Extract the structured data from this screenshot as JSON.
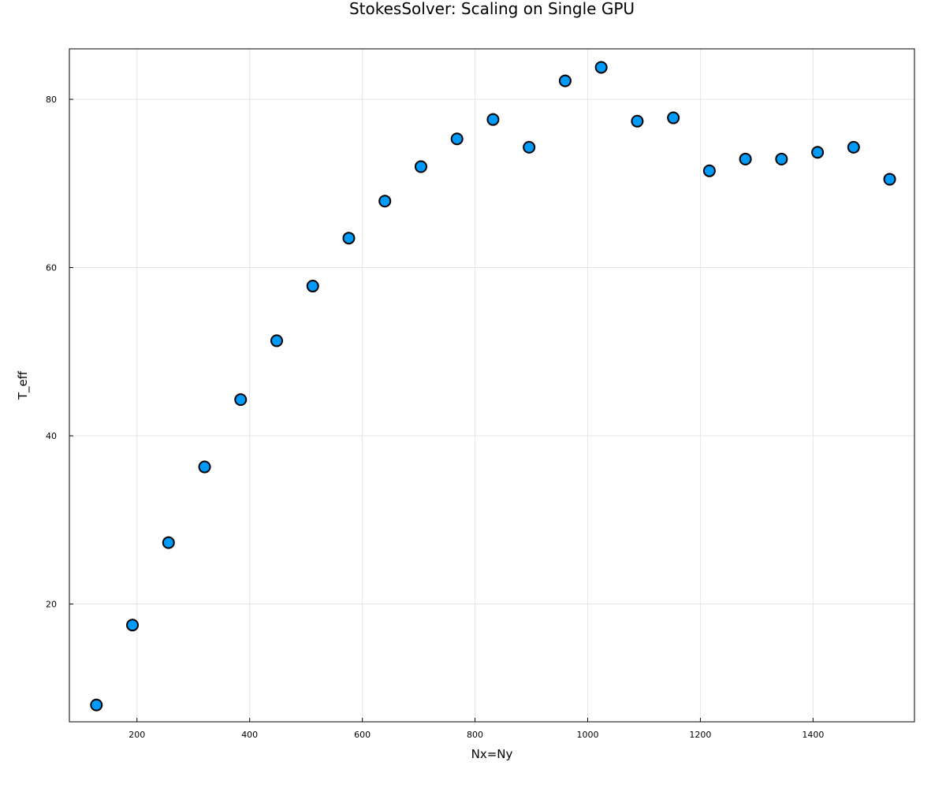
{
  "chart_data": {
    "type": "scatter",
    "title": "StokesSolver: Scaling on Single GPU",
    "xlabel": "Nx=Ny",
    "ylabel": "T_eff",
    "xlim": [
      80,
      1580
    ],
    "ylim": [
      6,
      86
    ],
    "xticks": [
      200,
      400,
      600,
      800,
      1000,
      1200,
      1400
    ],
    "yticks": [
      20,
      40,
      60,
      80
    ],
    "grid": true,
    "legend": "none",
    "marker_color": "#009af9",
    "marker_edge_color": "#000000",
    "points": [
      {
        "x": 128,
        "y": 8.0
      },
      {
        "x": 192,
        "y": 17.5
      },
      {
        "x": 256,
        "y": 27.3
      },
      {
        "x": 320,
        "y": 36.3
      },
      {
        "x": 384,
        "y": 44.3
      },
      {
        "x": 448,
        "y": 51.3
      },
      {
        "x": 512,
        "y": 57.8
      },
      {
        "x": 576,
        "y": 63.5
      },
      {
        "x": 640,
        "y": 67.9
      },
      {
        "x": 704,
        "y": 72.0
      },
      {
        "x": 768,
        "y": 75.3
      },
      {
        "x": 832,
        "y": 77.6
      },
      {
        "x": 896,
        "y": 74.3
      },
      {
        "x": 960,
        "y": 82.2
      },
      {
        "x": 1024,
        "y": 83.8
      },
      {
        "x": 1088,
        "y": 77.4
      },
      {
        "x": 1152,
        "y": 77.8
      },
      {
        "x": 1216,
        "y": 71.5
      },
      {
        "x": 1280,
        "y": 72.9
      },
      {
        "x": 1344,
        "y": 72.9
      },
      {
        "x": 1408,
        "y": 73.7
      },
      {
        "x": 1472,
        "y": 74.3
      },
      {
        "x": 1536,
        "y": 70.5
      }
    ]
  }
}
